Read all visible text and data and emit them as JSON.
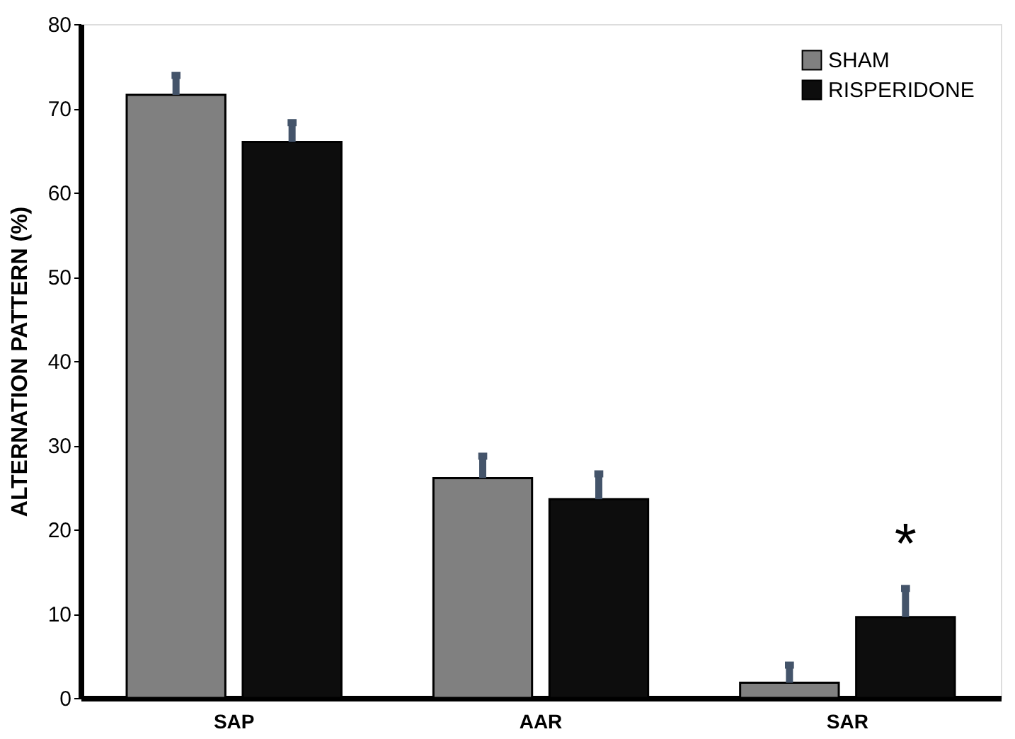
{
  "chart_data": {
    "type": "bar",
    "ylabel": "ALTERNATION PATTERN (%)",
    "categories": [
      "SAP",
      "AAR",
      "SAR"
    ],
    "series": [
      {
        "name": "SHAM",
        "color": "#808080",
        "values": [
          71.6,
          26.1,
          1.8
        ],
        "errors": [
          [
            71.6,
            73.9
          ],
          [
            26.1,
            28.7
          ],
          [
            1.8,
            3.9
          ]
        ]
      },
      {
        "name": "RISPERIDONE",
        "color": "#0d0d0d",
        "values": [
          66.0,
          23.6,
          9.6
        ],
        "errors": [
          [
            66.0,
            68.3
          ],
          [
            23.6,
            26.6
          ],
          [
            9.6,
            13.0
          ]
        ]
      }
    ],
    "ylim": [
      0,
      80
    ],
    "yticks": [
      0,
      10,
      20,
      30,
      40,
      50,
      60,
      70,
      80
    ],
    "grid": false,
    "legend": "top right",
    "annotations": [
      "*"
    ]
  }
}
